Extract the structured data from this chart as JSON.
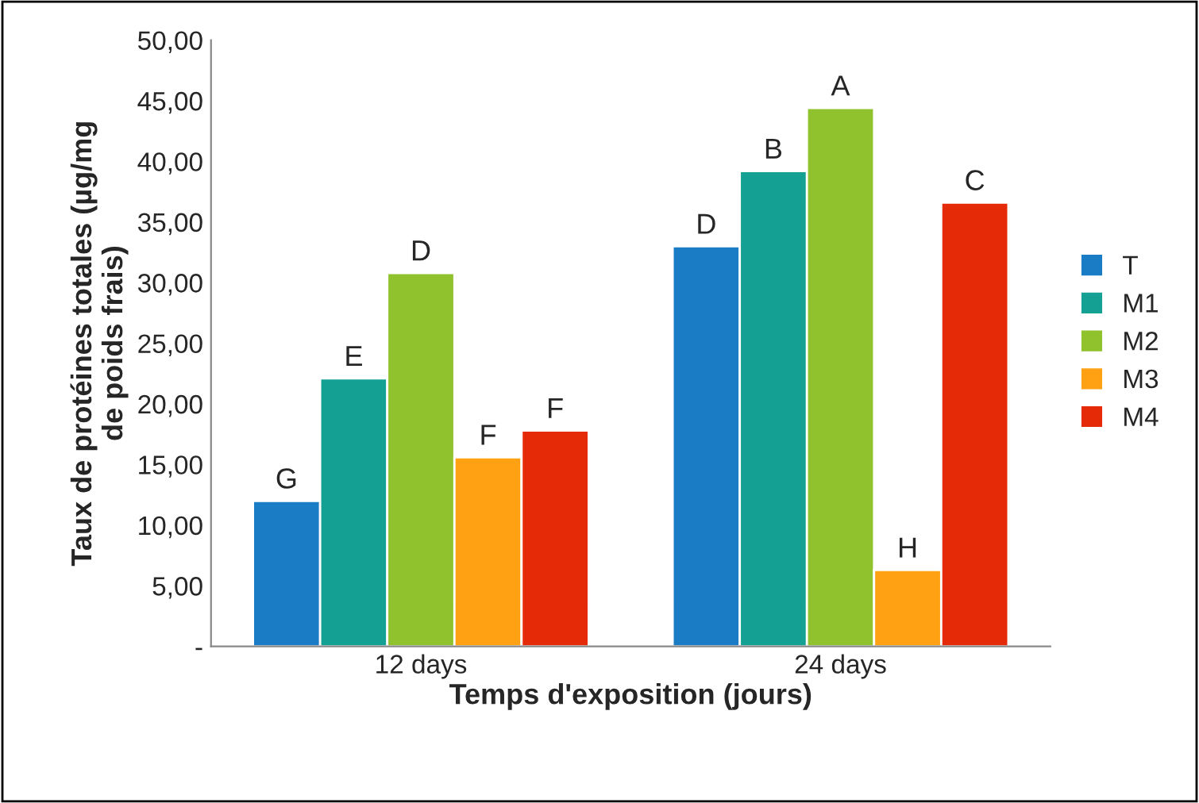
{
  "chart_data": {
    "type": "bar",
    "xlabel": "Temps d'exposition (jours)",
    "ylabel": "Taux de protéines totales (µg/mg de poids frais)",
    "categories": [
      "12 days",
      "24 days"
    ],
    "series": [
      {
        "name": "T",
        "color": "#1a7cc4",
        "values": [
          12.0,
          33.0
        ],
        "value_labels": [
          "G",
          "D"
        ]
      },
      {
        "name": "M1",
        "color": "#14a193",
        "values": [
          22.1,
          39.2
        ],
        "value_labels": [
          "E",
          "B"
        ]
      },
      {
        "name": "M2",
        "color": "#8fc22c",
        "values": [
          30.8,
          44.4
        ],
        "value_labels": [
          "D",
          "A"
        ]
      },
      {
        "name": "M3",
        "color": "#ffa112",
        "values": [
          15.6,
          6.3
        ],
        "value_labels": [
          "F",
          "H"
        ]
      },
      {
        "name": "M4",
        "color": "#e52a07",
        "values": [
          17.8,
          36.6
        ],
        "value_labels": [
          "F",
          "C"
        ]
      }
    ],
    "ylim": [
      0,
      50
    ],
    "yticks": [
      {
        "value": 0,
        "label": "-"
      },
      {
        "value": 5,
        "label": "5,00"
      },
      {
        "value": 10,
        "label": "10,00"
      },
      {
        "value": 15,
        "label": "15,00"
      },
      {
        "value": 20,
        "label": "20,00"
      },
      {
        "value": 25,
        "label": "25,00"
      },
      {
        "value": 30,
        "label": "30,00"
      },
      {
        "value": 35,
        "label": "35,00"
      },
      {
        "value": 40,
        "label": "40,00"
      },
      {
        "value": 45,
        "label": "45,00"
      },
      {
        "value": 50,
        "label": "50,00"
      }
    ],
    "grid": false,
    "legend": "right"
  }
}
